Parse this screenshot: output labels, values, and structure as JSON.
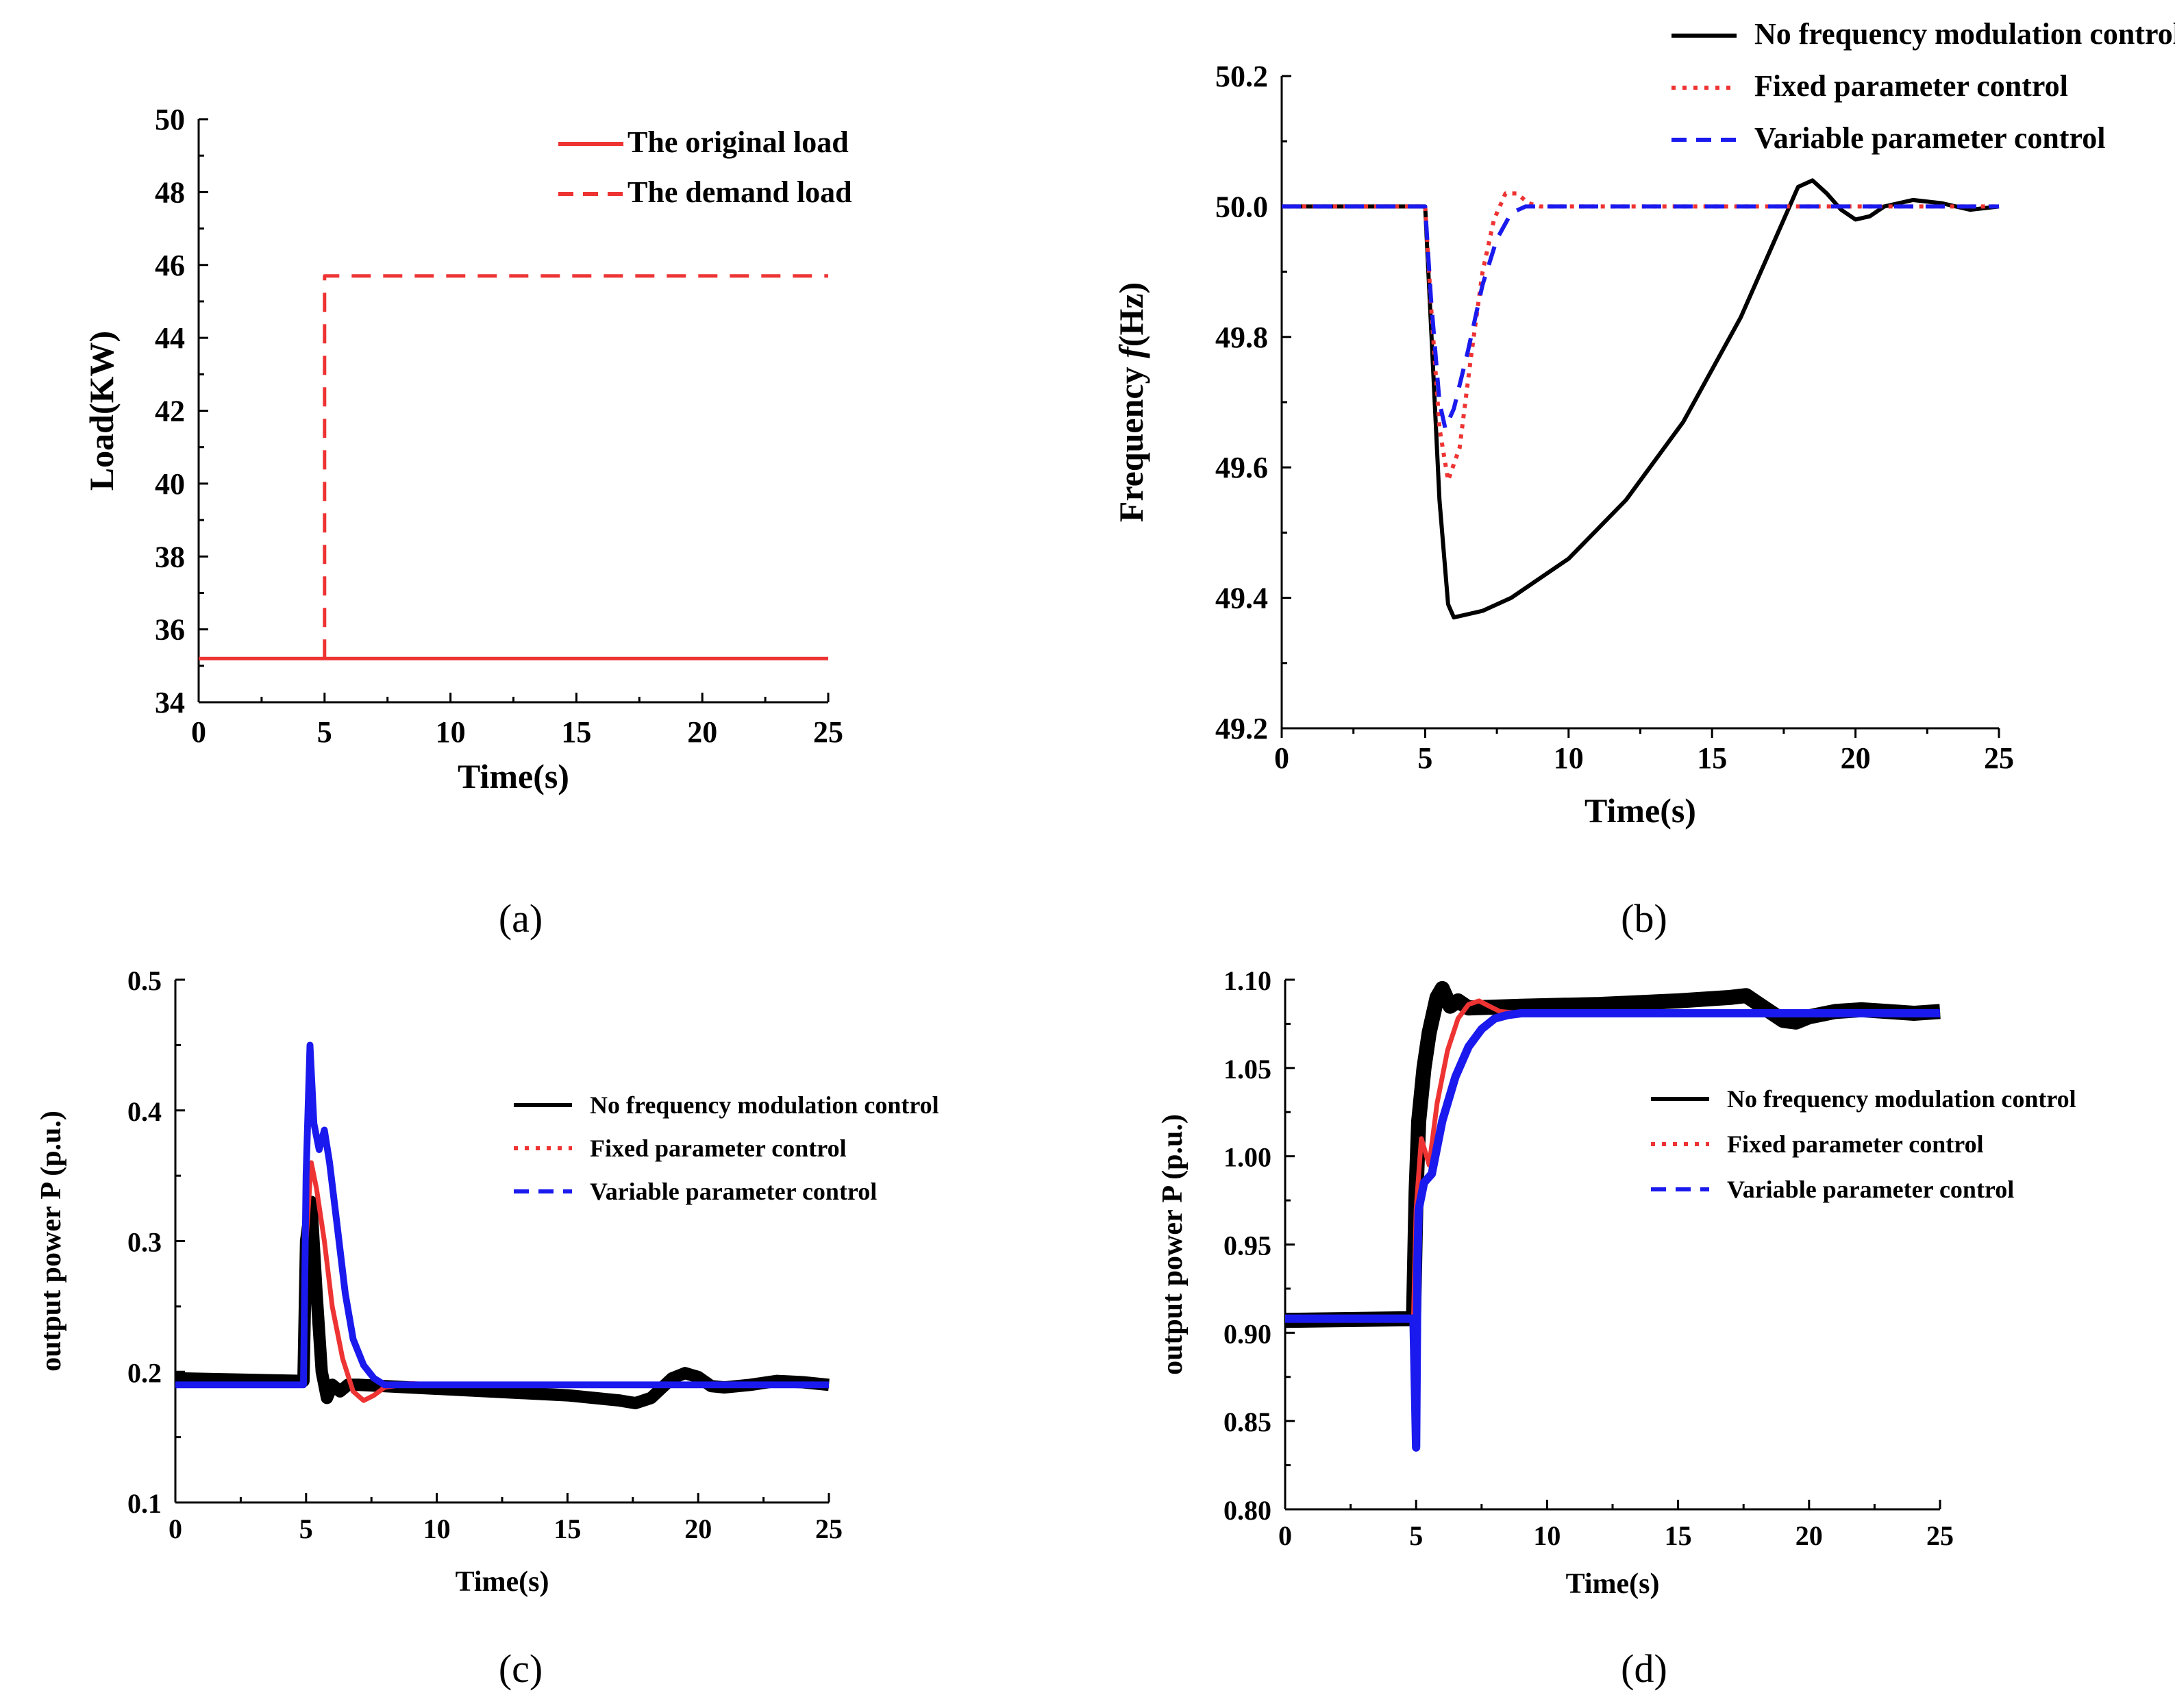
{
  "colors": {
    "black": "#000000",
    "red": "#ee3333",
    "blue": "#1a1aee"
  },
  "chart_data": [
    {
      "id": "a",
      "type": "line",
      "caption": "(a)",
      "xlabel": "Time(s)",
      "ylabel": "Load(KW)",
      "xlim": [
        0,
        25
      ],
      "ylim": [
        34,
        50
      ],
      "xticks": [
        "0",
        "5",
        "10",
        "15",
        "20",
        "25"
      ],
      "yticks": [
        "34",
        "36",
        "38",
        "40",
        "42",
        "44",
        "46",
        "48",
        "50"
      ],
      "legend_position": "top-right",
      "series": [
        {
          "name": "The original load",
          "style": "solid",
          "color": "#ee3333",
          "x": [
            0,
            25
          ],
          "y": [
            35.2,
            35.2
          ]
        },
        {
          "name": "The demand load",
          "style": "dashed",
          "color": "#ee3333",
          "x": [
            5,
            5,
            25
          ],
          "y": [
            35.2,
            45.7,
            45.7
          ]
        }
      ]
    },
    {
      "id": "b",
      "type": "line",
      "caption": "(b)",
      "xlabel": "Time(s)",
      "ylabel_parts": [
        "Frequency ",
        "f",
        "(Hz)"
      ],
      "xlim": [
        0,
        25
      ],
      "ylim": [
        49.2,
        50.2
      ],
      "xticks": [
        "0",
        "5",
        "10",
        "15",
        "20",
        "25"
      ],
      "yticks": [
        "49.2",
        "49.4",
        "49.6",
        "49.8",
        "50.0",
        "50.2"
      ],
      "legend_position": "top-right",
      "series": [
        {
          "name": "No frequency modulation control",
          "style": "solid",
          "color": "#000000",
          "x": [
            0,
            5,
            5.2,
            5.5,
            5.8,
            6.0,
            7,
            8,
            10,
            12,
            14,
            16,
            17,
            18,
            18.5,
            19,
            19.5,
            20,
            20.5,
            21,
            22,
            23,
            24,
            25
          ],
          "y": [
            50.0,
            50.0,
            49.82,
            49.55,
            49.39,
            49.37,
            49.38,
            49.4,
            49.46,
            49.55,
            49.67,
            49.83,
            49.93,
            50.03,
            50.04,
            50.02,
            49.995,
            49.98,
            49.985,
            50.0,
            50.01,
            50.005,
            49.995,
            50.0
          ]
        },
        {
          "name": "Fixed parameter control",
          "style": "dotted",
          "color": "#ee3333",
          "x": [
            0,
            5,
            5.2,
            5.5,
            5.8,
            6.2,
            6.6,
            7.0,
            7.4,
            7.8,
            8.2,
            8.6,
            9,
            10,
            25
          ],
          "y": [
            50.0,
            50.0,
            49.85,
            49.66,
            49.58,
            49.63,
            49.77,
            49.9,
            49.98,
            50.02,
            50.02,
            50.005,
            50.0,
            50.0,
            50.0
          ]
        },
        {
          "name": "Variable parameter control",
          "style": "dashed",
          "color": "#1a1aee",
          "x": [
            0,
            5,
            5.2,
            5.5,
            5.7,
            6.0,
            6.5,
            7.0,
            7.5,
            8.0,
            8.5,
            9,
            10,
            25
          ],
          "y": [
            50.0,
            50.0,
            49.86,
            49.7,
            49.66,
            49.69,
            49.78,
            49.88,
            49.95,
            49.99,
            50.0,
            50.0,
            50.0,
            50.0
          ]
        }
      ]
    },
    {
      "id": "c",
      "type": "line",
      "caption": "(c)",
      "xlabel": "Time(s)",
      "ylabel": "output power  P  (p.u.)",
      "xlim": [
        0,
        25
      ],
      "ylim": [
        0.1,
        0.5
      ],
      "xticks": [
        "0",
        "5",
        "10",
        "15",
        "20",
        "25"
      ],
      "yticks": [
        "0.1",
        "0.2",
        "0.3",
        "0.4",
        "0.5"
      ],
      "legend_position": "middle-right",
      "series": [
        {
          "name": "No frequency modulation control",
          "style": "solid",
          "color": "#000000",
          "x": [
            0,
            4.9,
            5.0,
            5.2,
            5.4,
            5.6,
            5.8,
            6.0,
            6.3,
            6.6,
            7,
            9,
            12,
            15,
            17,
            17.6,
            18.2,
            19,
            19.5,
            20,
            20.5,
            21,
            22,
            23,
            24,
            25
          ],
          "y": [
            0.195,
            0.193,
            0.3,
            0.33,
            0.26,
            0.2,
            0.18,
            0.19,
            0.185,
            0.19,
            0.19,
            0.188,
            0.185,
            0.182,
            0.178,
            0.176,
            0.18,
            0.195,
            0.199,
            0.196,
            0.189,
            0.188,
            0.19,
            0.193,
            0.192,
            0.19
          ]
        },
        {
          "name": "Fixed parameter control",
          "style": "dotted",
          "color": "#ee3333",
          "x": [
            0,
            4.9,
            5.0,
            5.2,
            5.4,
            5.7,
            6.0,
            6.4,
            6.8,
            7.2,
            7.6,
            8.0,
            9,
            10,
            25
          ],
          "y": [
            0.19,
            0.19,
            0.3,
            0.36,
            0.34,
            0.3,
            0.25,
            0.21,
            0.185,
            0.178,
            0.182,
            0.188,
            0.191,
            0.19,
            0.19
          ]
        },
        {
          "name": "Variable parameter control",
          "style": "dashed",
          "color": "#1a1aee",
          "x": [
            0,
            4.9,
            5.0,
            5.15,
            5.3,
            5.5,
            5.7,
            5.9,
            6.2,
            6.5,
            6.8,
            7.2,
            7.6,
            8.0,
            9,
            25
          ],
          "y": [
            0.19,
            0.19,
            0.35,
            0.45,
            0.39,
            0.37,
            0.385,
            0.36,
            0.31,
            0.26,
            0.225,
            0.205,
            0.195,
            0.19,
            0.19,
            0.19
          ]
        }
      ]
    },
    {
      "id": "d",
      "type": "line",
      "caption": "(d)",
      "xlabel": "Time(s)",
      "ylabel": "output power  P  (p.u.)",
      "xlim": [
        0,
        25
      ],
      "ylim": [
        0.8,
        1.1
      ],
      "xticks": [
        "0",
        "5",
        "10",
        "15",
        "20",
        "25"
      ],
      "yticks": [
        "0.80",
        "0.85",
        "0.90",
        "0.95",
        "1.00",
        "1.05",
        "1.10"
      ],
      "legend_position": "middle-right",
      "series": [
        {
          "name": "No frequency modulation control",
          "style": "solid",
          "color": "#000000",
          "x": [
            0,
            4.9,
            5.0,
            5.1,
            5.3,
            5.5,
            5.8,
            6.0,
            6.3,
            6.6,
            7,
            9,
            12,
            15,
            17,
            17.6,
            18.2,
            19,
            19.5,
            20,
            21,
            22,
            23,
            24,
            25
          ],
          "y": [
            0.907,
            0.908,
            0.98,
            1.02,
            1.05,
            1.07,
            1.09,
            1.095,
            1.085,
            1.088,
            1.084,
            1.085,
            1.086,
            1.088,
            1.09,
            1.091,
            1.085,
            1.077,
            1.076,
            1.079,
            1.082,
            1.083,
            1.082,
            1.081,
            1.082
          ]
        },
        {
          "name": "Fixed parameter control",
          "style": "dotted",
          "color": "#ee3333",
          "x": [
            0,
            4.9,
            5.0,
            5.2,
            5.5,
            5.8,
            6.2,
            6.6,
            7.0,
            7.4,
            7.8,
            8.2,
            9,
            10,
            25
          ],
          "y": [
            0.908,
            0.908,
            0.97,
            1.01,
            0.995,
            1.03,
            1.06,
            1.078,
            1.086,
            1.088,
            1.085,
            1.082,
            1.081,
            1.081,
            1.081
          ]
        },
        {
          "name": "Variable parameter control",
          "style": "dashed",
          "color": "#1a1aee",
          "x": [
            0,
            4.9,
            5.0,
            5.05,
            5.1,
            5.3,
            5.6,
            6.0,
            6.5,
            7.0,
            7.5,
            8.0,
            8.5,
            9,
            10,
            25
          ],
          "y": [
            0.908,
            0.908,
            0.835,
            0.94,
            0.97,
            0.985,
            0.99,
            1.02,
            1.045,
            1.062,
            1.072,
            1.078,
            1.08,
            1.081,
            1.081,
            1.081
          ]
        }
      ]
    }
  ]
}
